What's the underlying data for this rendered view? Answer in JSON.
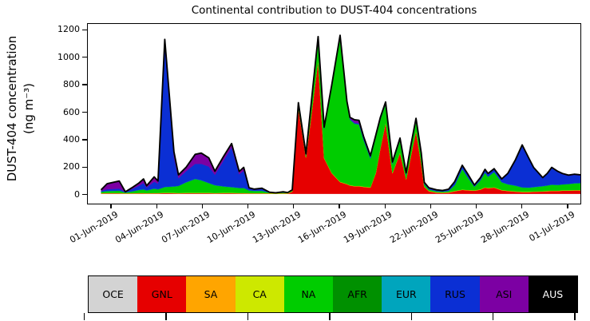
{
  "title": "Continental contribution to DUST-404 concentrations",
  "y_axis": {
    "label_line1": "DUST-404 concentration",
    "label_line2": "(ng m⁻³)",
    "ticks": [
      0,
      200,
      400,
      600,
      800,
      1000,
      1200
    ]
  },
  "x_axis": {
    "tick_labels": [
      "01-Jun-2019",
      "04-Jun-2019",
      "07-Jun-2019",
      "10-Jun-2019",
      "13-Jun-2019",
      "16-Jun-2019",
      "19-Jun-2019",
      "22-Jun-2019",
      "25-Jun-2019",
      "28-Jun-2019",
      "01-Jul-2019"
    ]
  },
  "legend": {
    "position": "bottom",
    "items": [
      {
        "label": "OCE",
        "color": "#d3d3d3",
        "text_color": "#000000"
      },
      {
        "label": "GNL",
        "color": "#e60000",
        "text_color": "#000000"
      },
      {
        "label": "SA",
        "color": "#ffa500",
        "text_color": "#000000"
      },
      {
        "label": "CA",
        "color": "#cde800",
        "text_color": "#000000"
      },
      {
        "label": "NA",
        "color": "#00cc00",
        "text_color": "#000000"
      },
      {
        "label": "AFR",
        "color": "#009000",
        "text_color": "#000000"
      },
      {
        "label": "EUR",
        "color": "#00a5bd",
        "text_color": "#000000"
      },
      {
        "label": "RUS",
        "color": "#0b2fd4",
        "text_color": "#000000"
      },
      {
        "label": "ASI",
        "color": "#7c00a3",
        "text_color": "#000000"
      },
      {
        "label": "AUS",
        "color": "#000000",
        "text_color": "#ffffff"
      }
    ]
  },
  "chart_data": {
    "type": "area",
    "stacked": true,
    "title": "Continental contribution to DUST-404 concentrations",
    "xlabel": "",
    "ylabel": "DUST-404 concentration (ng m⁻³)",
    "ylim": [
      -70,
      1250
    ],
    "x_unit": "days since 01-Jun-2019 00:00 UTC",
    "x_range_days": [
      -1.57,
      30.9
    ],
    "xtick_days": [
      0,
      3,
      6,
      9,
      12,
      15,
      18,
      21,
      24,
      27,
      30
    ],
    "xtick_labels": [
      "01-Jun-2019",
      "04-Jun-2019",
      "07-Jun-2019",
      "10-Jun-2019",
      "13-Jun-2019",
      "16-Jun-2019",
      "19-Jun-2019",
      "22-Jun-2019",
      "25-Jun-2019",
      "28-Jun-2019",
      "01-Jul-2019"
    ],
    "grid": false,
    "legend_position": "bottom strip",
    "total_line_color": "#000000",
    "stack_order_bottom_to_top": [
      "OCE",
      "GNL",
      "SA",
      "CA",
      "NA",
      "AFR",
      "EUR",
      "RUS",
      "ASI",
      "AUS"
    ],
    "x_days": [
      -0.7,
      -0.3,
      0.5,
      0.9,
      1.4,
      1.8,
      2.1,
      2.3,
      2.8,
      3.05,
      3.5,
      4.1,
      4.4,
      4.9,
      5.5,
      5.9,
      6.4,
      6.8,
      7.4,
      7.9,
      8.4,
      8.7,
      9.05,
      9.4,
      9.9,
      10.4,
      10.8,
      11.3,
      11.6,
      11.9,
      12.3,
      12.8,
      13.6,
      14.0,
      14.5,
      15.05,
      15.5,
      15.7,
      16.0,
      16.3,
      16.6,
      17.05,
      17.4,
      17.7,
      18.05,
      18.5,
      19.0,
      19.4,
      19.7,
      20.05,
      20.4,
      20.6,
      20.9,
      21.4,
      21.8,
      22.2,
      22.6,
      23.1,
      23.5,
      23.9,
      24.3,
      24.6,
      24.8,
      25.2,
      25.7,
      26.1,
      26.6,
      27.05,
      27.5,
      27.8,
      28.4,
      28.7,
      29.0,
      29.4,
      29.7,
      30.1,
      30.5,
      31.0
    ],
    "series": [
      {
        "name": "OCE",
        "color": "#d3d3d3",
        "constant": 1
      },
      {
        "name": "GNL",
        "color": "#e60000",
        "values": [
          2,
          3,
          3,
          1,
          2,
          3,
          3,
          2,
          3,
          3,
          5,
          4,
          3,
          4,
          4,
          4,
          4,
          3,
          4,
          4,
          3,
          3,
          2,
          2,
          2,
          1,
          0,
          1,
          1,
          15,
          630,
          265,
          975,
          260,
          150,
          85,
          70,
          60,
          55,
          55,
          50,
          45,
          150,
          330,
          520,
          150,
          300,
          105,
          270,
          460,
          220,
          50,
          18,
          8,
          6,
          8,
          18,
          28,
          25,
          22,
          30,
          45,
          40,
          45,
          25,
          20,
          15,
          12,
          12,
          14,
          16,
          18,
          20,
          20,
          22,
          22,
          24,
          24
        ]
      },
      {
        "name": "SA",
        "color": "#ffa500",
        "constant": 1
      },
      {
        "name": "CA",
        "color": "#cde800",
        "constant": 2
      },
      {
        "name": "NA",
        "color": "#00cc00",
        "values": [
          8,
          12,
          15,
          3,
          12,
          20,
          25,
          18,
          30,
          25,
          40,
          45,
          50,
          75,
          100,
          90,
          70,
          55,
          45,
          40,
          35,
          35,
          18,
          14,
          15,
          2,
          0,
          3,
          1,
          5,
          22,
          15,
          160,
          215,
          630,
          1060,
          590,
          480,
          455,
          450,
          340,
          210,
          260,
          210,
          135,
          65,
          90,
          30,
          60,
          75,
          60,
          17,
          9,
          6,
          5,
          8,
          40,
          150,
          85,
          25,
          65,
          105,
          80,
          110,
          55,
          45,
          40,
          30,
          28,
          30,
          35,
          38,
          42,
          40,
          42,
          45,
          48,
          50
        ]
      },
      {
        "name": "AFR",
        "color": "#009000",
        "constant": 1
      },
      {
        "name": "EUR",
        "color": "#00a5bd",
        "constant": 2
      },
      {
        "name": "RUS",
        "color": "#0b2fd4",
        "values": [
          5,
          12,
          14,
          2,
          18,
          30,
          45,
          20,
          50,
          40,
          1032,
          215,
          55,
          80,
          110,
          120,
          120,
          75,
          195,
          290,
          100,
          125,
          12,
          8,
          12,
          1,
          0,
          2,
          0,
          1,
          5,
          4,
          6,
          4,
          6,
          6,
          6,
          6,
          6,
          6,
          10,
          12,
          8,
          8,
          8,
          8,
          8,
          8,
          8,
          8,
          8,
          6,
          6,
          4,
          4,
          7,
          20,
          20,
          18,
          6,
          13,
          18,
          18,
          18,
          18,
          73,
          183,
          306,
          208,
          139,
          57,
          82,
          121,
          93,
          74,
          59,
          61,
          54
        ]
      },
      {
        "name": "ASI",
        "color": "#7c00a3",
        "values": [
          7,
          40,
          55,
          1,
          10,
          19,
          29,
          12,
          34,
          19,
          50,
          38,
          24,
          28,
          68,
          78,
          63,
          26,
          28,
          28,
          19,
          24,
          5,
          3,
          5,
          0,
          0,
          1,
          0,
          1,
          5,
          3,
          6,
          3,
          6,
          6,
          6,
          8,
          21,
          21,
          12,
          5,
          4,
          4,
          4,
          4,
          4,
          4,
          4,
          4,
          4,
          4,
          4,
          4,
          2,
          4,
          4,
          4,
          4,
          4,
          4,
          4,
          4,
          4,
          4,
          4,
          4,
          4,
          4,
          4,
          4,
          4,
          4,
          4,
          4,
          4,
          4,
          4
        ]
      },
      {
        "name": "AUS",
        "color": "#000000",
        "constant": 1
      }
    ]
  }
}
